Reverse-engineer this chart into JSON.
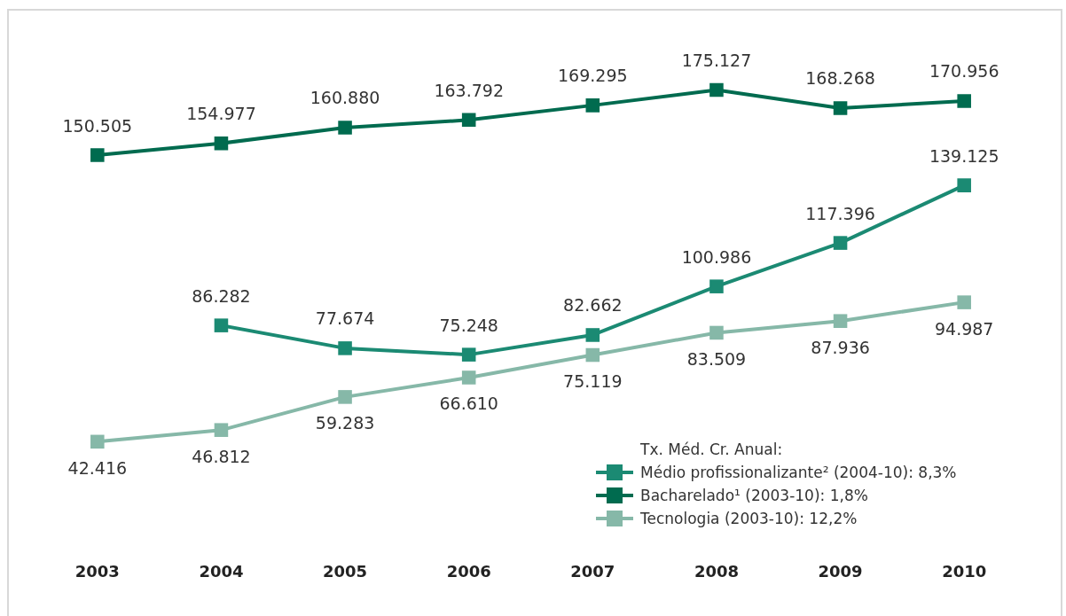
{
  "chart_data": {
    "type": "line",
    "categories": [
      "2003",
      "2004",
      "2005",
      "2006",
      "2007",
      "2008",
      "2009",
      "2010"
    ],
    "series": [
      {
        "name": "Médio profissionalizante²  (2004-10): 8,3%",
        "color": "#1b8a73",
        "values": [
          null,
          86282,
          77674,
          75248,
          82662,
          100986,
          117396,
          139125
        ],
        "value_labels": [
          null,
          "86.282",
          "77.674",
          "75.248",
          "82.662",
          "100.986",
          "117.396",
          "139.125"
        ]
      },
      {
        "name": "Bacharelado¹ (2003-10): 1,8%",
        "color": "#006b4f",
        "values": [
          150505,
          154977,
          160880,
          163792,
          169295,
          175127,
          168268,
          170956
        ],
        "value_labels": [
          "150.505",
          "154.977",
          "160.880",
          "163.792",
          "169.295",
          "175.127",
          "168.268",
          "170.956"
        ]
      },
      {
        "name": "Tecnologia (2003-10): 12,2%",
        "color": "#86b8a8",
        "values": [
          42416,
          46812,
          59283,
          66610,
          75119,
          83509,
          87936,
          94987
        ],
        "value_labels": [
          "42.416",
          "46.812",
          "59.283",
          "66.610",
          "75.119",
          "83.509",
          "87.936",
          "94.987"
        ]
      }
    ],
    "legend_title": "Tx. Méd. Cr. Anual:",
    "legend": "bottom right",
    "marker": "square",
    "line_style": "solid",
    "grid": false
  }
}
